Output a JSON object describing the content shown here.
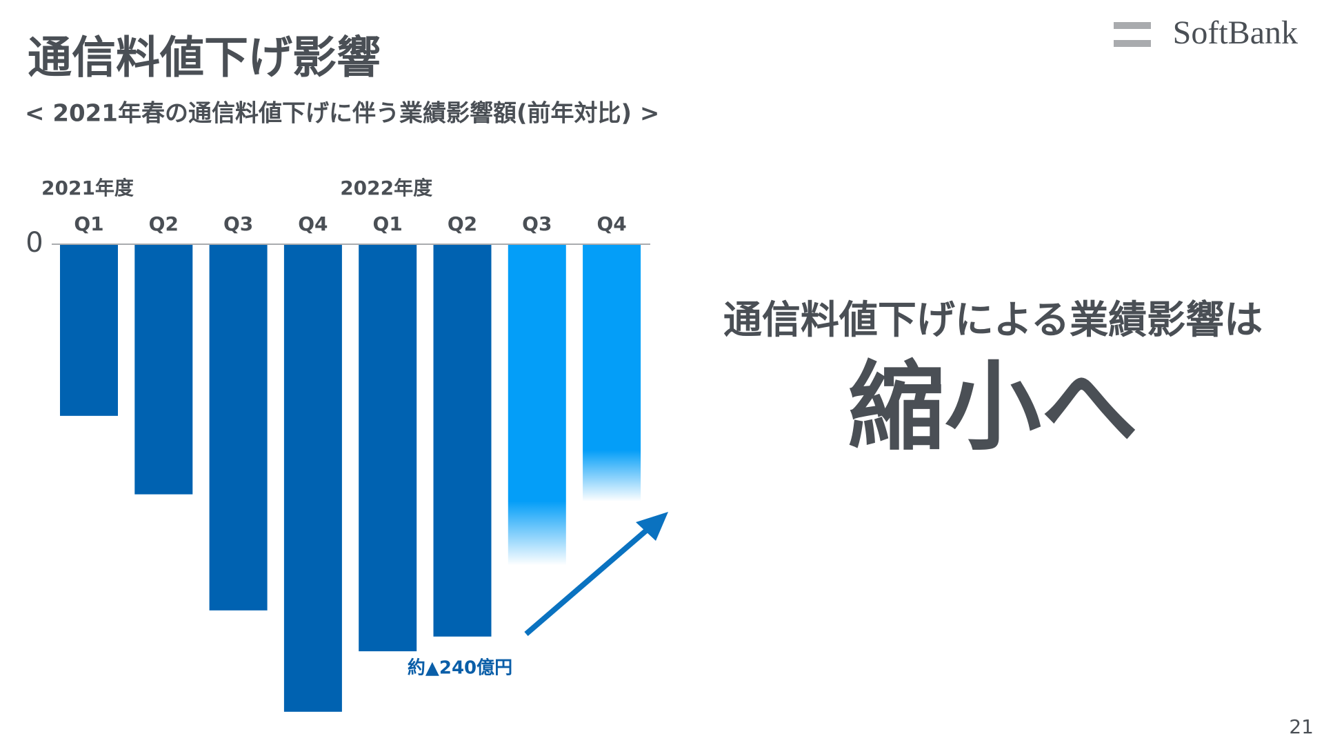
{
  "chart_data": {
    "type": "bar",
    "title": "通信料値下げ影響",
    "subtitle": "< 2021年春の通信料値下げに伴う業績影響額(前年対比) >",
    "fiscal_years": [
      "2021年度",
      "2022年度"
    ],
    "categories": [
      "Q1",
      "Q2",
      "Q3",
      "Q4",
      "Q1",
      "Q2",
      "Q3",
      "Q4"
    ],
    "values": [
      -105,
      -153,
      -224,
      -286,
      -249,
      -240,
      -196,
      -157
    ],
    "colors": [
      "#0062b1",
      "#0062b1",
      "#0062b1",
      "#0062b1",
      "#0062b1",
      "#0062b1",
      "#049ef8",
      "#049ef8"
    ],
    "faded": [
      false,
      false,
      false,
      false,
      false,
      false,
      true,
      true
    ],
    "ylim": [
      -300,
      0
    ],
    "yticks": [
      0
    ],
    "annotation": "約▲240億円",
    "message": "通信料値下げによる業績影響は",
    "message_emphasis": "縮小へ"
  },
  "logo": "SoftBank",
  "page_number": "21"
}
